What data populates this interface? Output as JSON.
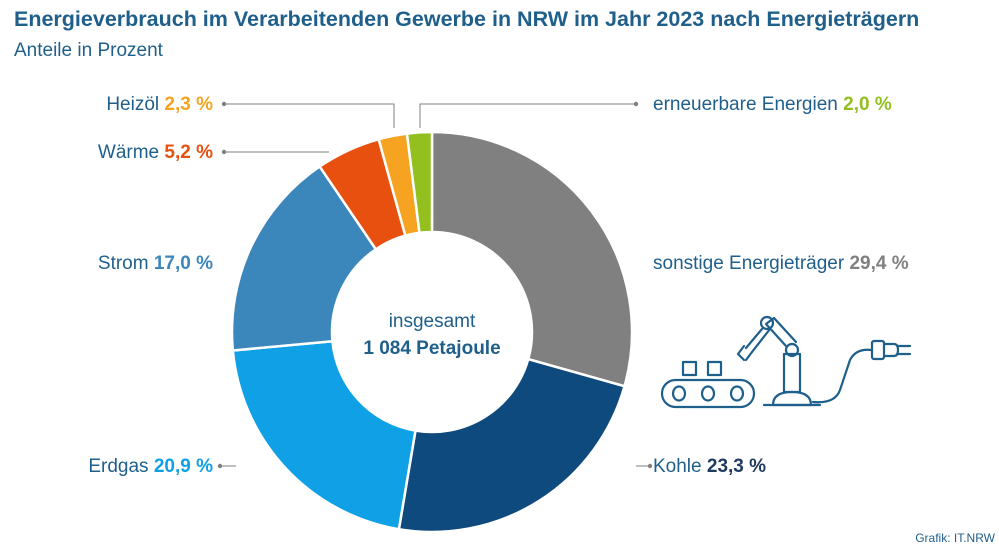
{
  "title": "Energieverbrauch im Verarbeitenden Gewerbe in NRW im Jahr 2023 nach Energieträgern",
  "subtitle": "Anteile in Prozent",
  "source": "Grafik: IT.NRW",
  "chart_data": {
    "type": "pie",
    "donut": true,
    "center_label": {
      "line1": "insgesamt",
      "line2": "1 084 Petajoule"
    },
    "unit": "%",
    "slices": [
      {
        "name": "sonstige Energieträger",
        "value": 29.4,
        "value_label": "29,4 %",
        "color": "#808080",
        "value_color": "#808080"
      },
      {
        "name": "Kohle",
        "value": 23.3,
        "value_label": "23,3 %",
        "color": "#0e4a7d",
        "value_color": "#1f3a5f"
      },
      {
        "name": "Erdgas",
        "value": 20.9,
        "value_label": "20,9 %",
        "color": "#0fa0e6",
        "value_color": "#0fa0e6"
      },
      {
        "name": "Strom",
        "value": 17.0,
        "value_label": "17,0 %",
        "color": "#3b86bb",
        "value_color": "#3b86bb"
      },
      {
        "name": "Wärme",
        "value": 5.2,
        "value_label": "5,2 %",
        "color": "#e8500f",
        "value_color": "#e8500f"
      },
      {
        "name": "Heizöl",
        "value": 2.3,
        "value_label": "2,3 %",
        "color": "#f6a321",
        "value_color": "#f6a321"
      },
      {
        "name": "erneuerbare Energien",
        "value": 2.0,
        "value_label": "2,0 %",
        "color": "#93c01f",
        "value_color": "#93c01f"
      }
    ],
    "colors": {
      "label_text": "#1f5f8b",
      "leader_line": "#7f7f7f",
      "icon": "#1f5f8b"
    },
    "icon": "industrial-robot-conveyor-plug-icon"
  }
}
